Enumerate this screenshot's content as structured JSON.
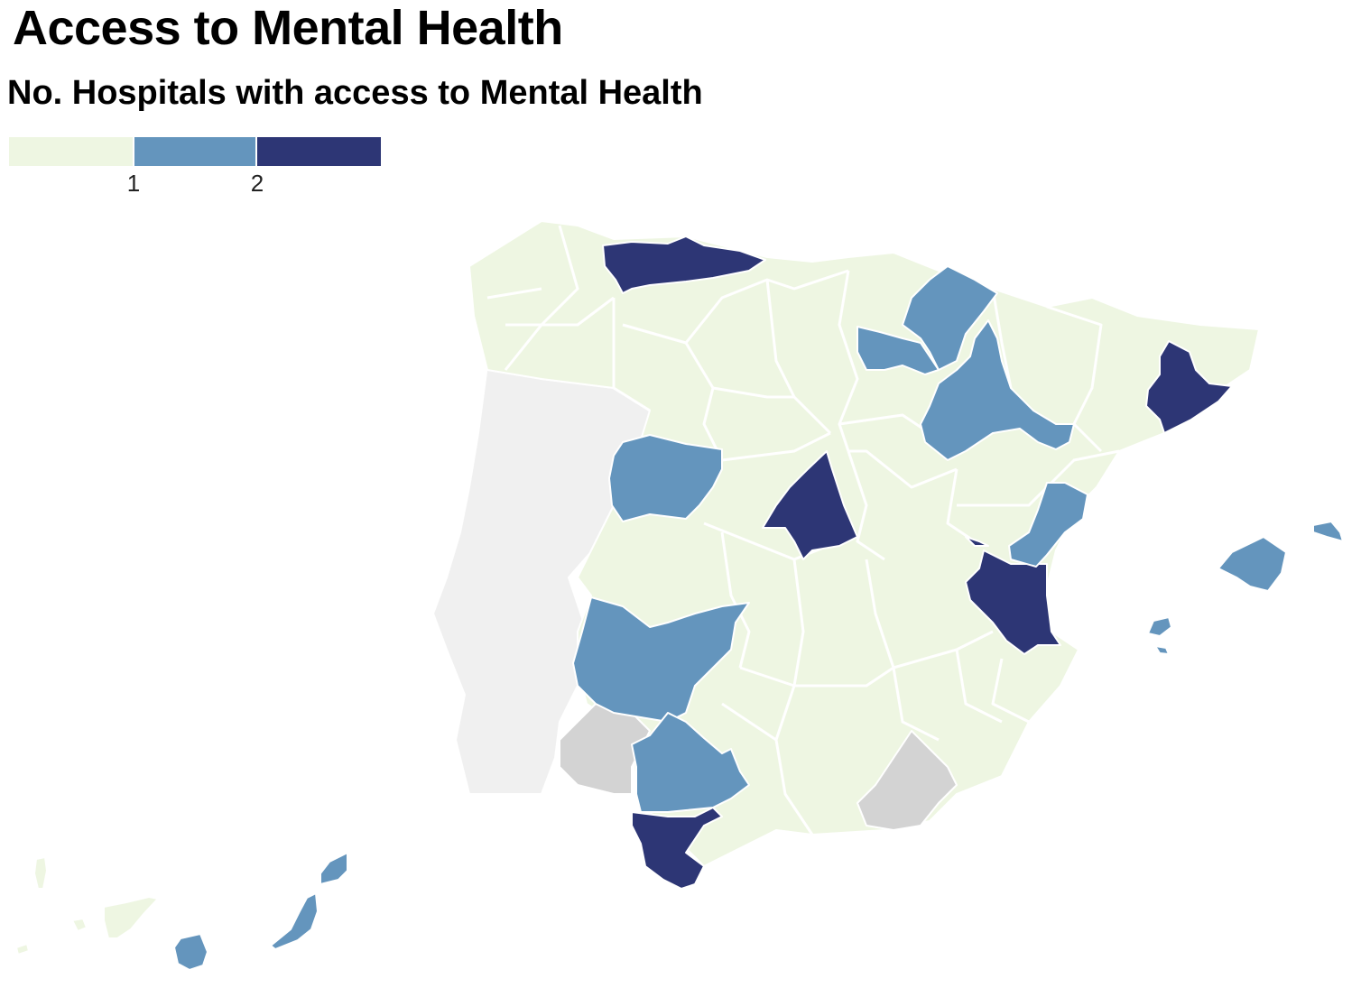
{
  "title": "Access to Mental Health",
  "subtitle": "No. Hospitals with access to Mental Health",
  "legend": {
    "colors": [
      "#eef6e2",
      "#6495bd",
      "#2d3675"
    ],
    "ticks": [
      "1",
      "2"
    ]
  },
  "colors": {
    "zero": "#eef6e2",
    "one": "#6495bd",
    "two": "#2d3675",
    "no_data": "#d3d3d3",
    "portugal": "#f0f0f0",
    "border": "#ffffff"
  },
  "map_data": {
    "type": "choropleth",
    "regions": [
      {
        "id": "asturias",
        "value": 2
      },
      {
        "id": "madrid",
        "value": 2
      },
      {
        "id": "barcelona",
        "value": 2
      },
      {
        "id": "valencia",
        "value": 2
      },
      {
        "id": "cadiz",
        "value": 2
      },
      {
        "id": "navarra",
        "value": 1
      },
      {
        "id": "la-rioja",
        "value": 1
      },
      {
        "id": "zaragoza",
        "value": 1
      },
      {
        "id": "salamanca",
        "value": 1
      },
      {
        "id": "castellon",
        "value": 1
      },
      {
        "id": "badajoz",
        "value": 1
      },
      {
        "id": "sevilla",
        "value": 1
      },
      {
        "id": "mallorca",
        "value": 1
      },
      {
        "id": "ibiza",
        "value": 1
      },
      {
        "id": "menorca",
        "value": 1
      },
      {
        "id": "gran-canaria",
        "value": 1
      },
      {
        "id": "lanzarote",
        "value": 1
      },
      {
        "id": "fuerteventura",
        "value": 1
      },
      {
        "id": "huelva",
        "value": null
      },
      {
        "id": "almeria",
        "value": null
      }
    ]
  }
}
